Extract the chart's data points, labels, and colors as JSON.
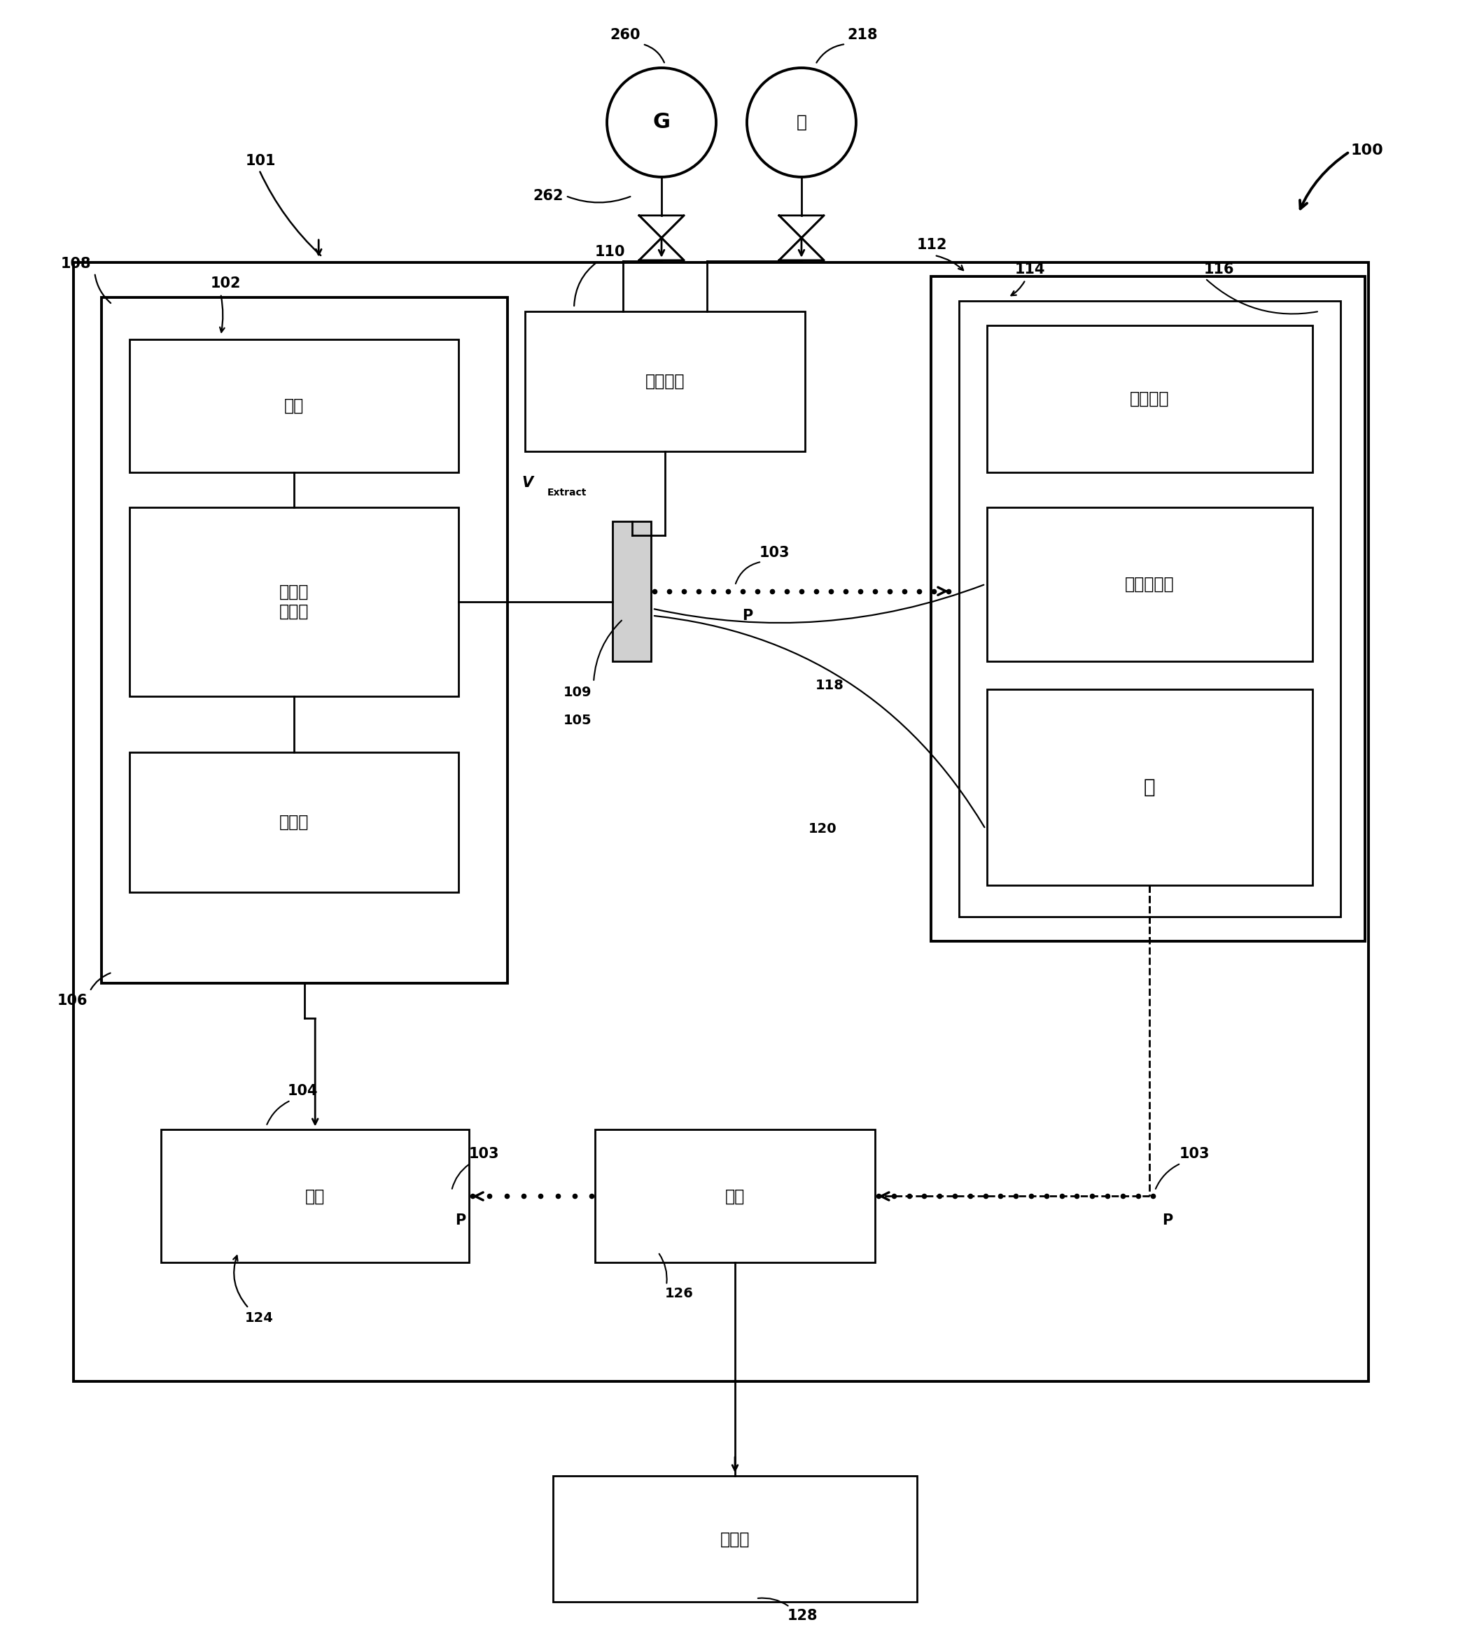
{
  "bg_color": "#ffffff",
  "fig_width": 21.0,
  "fig_height": 23.25,
  "labels": {
    "100": "100",
    "101": "101",
    "102": "102",
    "103": "103",
    "104": "104",
    "105": "105",
    "106": "106",
    "108": "108",
    "109": "109",
    "110": "110",
    "112": "112",
    "114": "114",
    "116": "116",
    "118": "118",
    "120": "120",
    "124": "124",
    "126": "126",
    "128": "128",
    "218": "218",
    "260": "260",
    "262": "262"
  },
  "texts": {
    "dianyan": "电源",
    "dengliziti": "等离子\n体腔室",
    "qitiyuan": "气体源",
    "chouqu": "抽取电源",
    "beidaoyiqi": "束导引器",
    "zhipuxi": "质谱分析器",
    "kong": "孔",
    "gongj": "工件",
    "zuzhang": "阻障",
    "kongzhiqi": "控制器",
    "G": "G",
    "pump": "泵",
    "P": "P",
    "V": "V",
    "Extract": "Extract"
  }
}
